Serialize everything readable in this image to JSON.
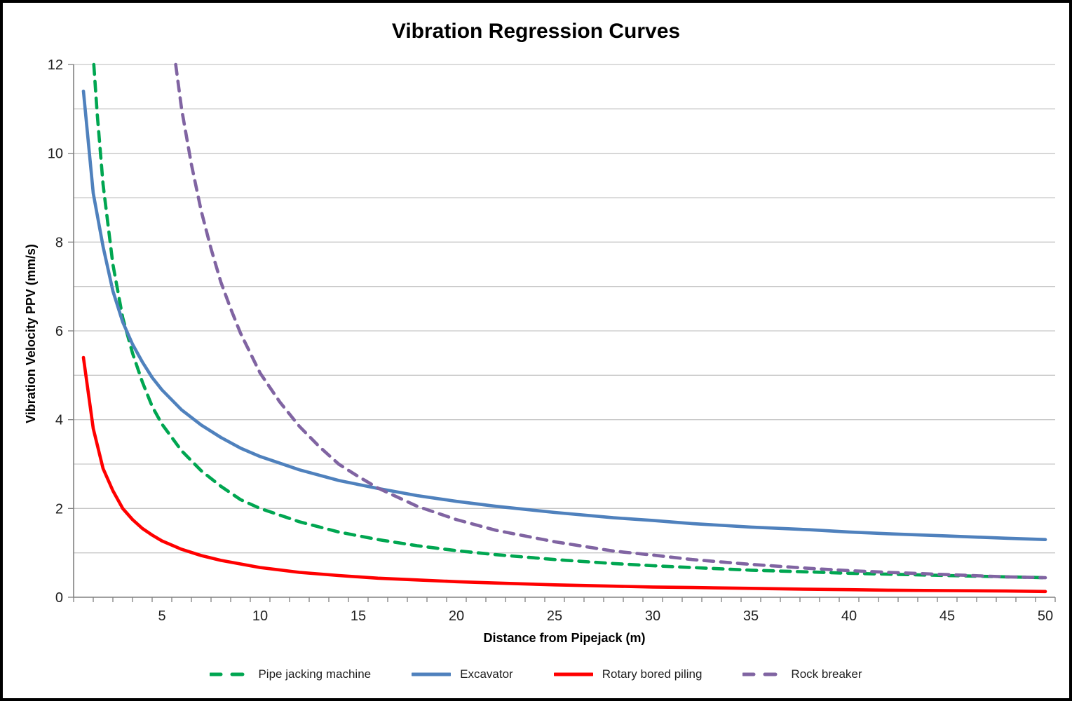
{
  "page": {
    "background": "#FFFFFF",
    "border_color": "#000000"
  },
  "chart_data": {
    "type": "line",
    "title": "Vibration Regression Curves",
    "xlabel": "Distance from Pipejack (m)",
    "ylabel": "Vibration Velocity PPV (mm/s)",
    "xlim": [
      0.5,
      50.5
    ],
    "ylim": [
      0,
      12
    ],
    "x_ticks": [
      5,
      10,
      15,
      20,
      25,
      30,
      35,
      40,
      45,
      50
    ],
    "y_ticks": [
      0,
      2,
      4,
      6,
      8,
      10,
      12
    ],
    "y_gridline_step": 1,
    "grid": "horizontal gridlines every 1 unit",
    "grid_color": "#C6C6C6",
    "axis_color": "#808080",
    "tick_label_color": "#1f1f1f",
    "legend_position": "bottom",
    "series": [
      {
        "name": "Pipe jacking machine",
        "color": "#00A651",
        "style": "dashed",
        "points": [
          [
            1.53,
            12
          ],
          [
            1.7,
            10.9
          ],
          [
            2,
            9.3
          ],
          [
            2.5,
            7.5
          ],
          [
            3,
            6.3
          ],
          [
            3.5,
            5.5
          ],
          [
            4,
            4.85
          ],
          [
            4.5,
            4.3
          ],
          [
            5,
            3.9
          ],
          [
            6,
            3.3
          ],
          [
            7,
            2.85
          ],
          [
            8,
            2.5
          ],
          [
            9,
            2.2
          ],
          [
            10,
            2.0
          ],
          [
            12,
            1.7
          ],
          [
            14,
            1.47
          ],
          [
            16,
            1.3
          ],
          [
            18,
            1.16
          ],
          [
            20,
            1.05
          ],
          [
            22,
            0.96
          ],
          [
            25,
            0.85
          ],
          [
            28,
            0.76
          ],
          [
            30,
            0.71
          ],
          [
            32,
            0.67
          ],
          [
            35,
            0.61
          ],
          [
            38,
            0.57
          ],
          [
            40,
            0.54
          ],
          [
            42,
            0.52
          ],
          [
            45,
            0.49
          ],
          [
            48,
            0.46
          ],
          [
            50,
            0.44
          ]
        ]
      },
      {
        "name": "Excavator",
        "color": "#4F81BD",
        "style": "solid",
        "points": [
          [
            1,
            11.4
          ],
          [
            1.5,
            9.1
          ],
          [
            2,
            7.9
          ],
          [
            2.5,
            6.9
          ],
          [
            3,
            6.2
          ],
          [
            3.5,
            5.7
          ],
          [
            4,
            5.3
          ],
          [
            4.5,
            4.95
          ],
          [
            5,
            4.67
          ],
          [
            6,
            4.22
          ],
          [
            7,
            3.88
          ],
          [
            8,
            3.6
          ],
          [
            9,
            3.36
          ],
          [
            10,
            3.17
          ],
          [
            12,
            2.87
          ],
          [
            14,
            2.63
          ],
          [
            16,
            2.45
          ],
          [
            18,
            2.29
          ],
          [
            20,
            2.16
          ],
          [
            22,
            2.05
          ],
          [
            25,
            1.91
          ],
          [
            28,
            1.79
          ],
          [
            30,
            1.73
          ],
          [
            32,
            1.66
          ],
          [
            35,
            1.58
          ],
          [
            38,
            1.52
          ],
          [
            40,
            1.47
          ],
          [
            42,
            1.43
          ],
          [
            45,
            1.38
          ],
          [
            48,
            1.33
          ],
          [
            50,
            1.3
          ]
        ]
      },
      {
        "name": "Rotary bored piling",
        "color": "#FF0000",
        "style": "solid",
        "points": [
          [
            1,
            5.4
          ],
          [
            1.5,
            3.8
          ],
          [
            2,
            2.9
          ],
          [
            2.5,
            2.4
          ],
          [
            3,
            2.0
          ],
          [
            3.5,
            1.75
          ],
          [
            4,
            1.55
          ],
          [
            4.5,
            1.4
          ],
          [
            5,
            1.27
          ],
          [
            6,
            1.08
          ],
          [
            7,
            0.94
          ],
          [
            8,
            0.83
          ],
          [
            9,
            0.75
          ],
          [
            10,
            0.67
          ],
          [
            12,
            0.56
          ],
          [
            14,
            0.49
          ],
          [
            16,
            0.43
          ],
          [
            18,
            0.39
          ],
          [
            20,
            0.35
          ],
          [
            22,
            0.32
          ],
          [
            25,
            0.28
          ],
          [
            28,
            0.25
          ],
          [
            30,
            0.23
          ],
          [
            32,
            0.22
          ],
          [
            35,
            0.2
          ],
          [
            38,
            0.18
          ],
          [
            40,
            0.17
          ],
          [
            42,
            0.16
          ],
          [
            45,
            0.15
          ],
          [
            48,
            0.14
          ],
          [
            50,
            0.13
          ]
        ]
      },
      {
        "name": "Rock breaker",
        "color": "#8064A2",
        "style": "dashed",
        "points": [
          [
            5.7,
            12
          ],
          [
            6,
            11.0
          ],
          [
            6.5,
            9.75
          ],
          [
            7,
            8.7
          ],
          [
            7.5,
            7.85
          ],
          [
            8,
            7.1
          ],
          [
            8.5,
            6.5
          ],
          [
            9,
            5.95
          ],
          [
            9.5,
            5.5
          ],
          [
            10,
            5.05
          ],
          [
            11,
            4.4
          ],
          [
            12,
            3.85
          ],
          [
            13,
            3.4
          ],
          [
            14,
            3.0
          ],
          [
            15,
            2.72
          ],
          [
            16,
            2.46
          ],
          [
            18,
            2.05
          ],
          [
            20,
            1.75
          ],
          [
            22,
            1.51
          ],
          [
            25,
            1.25
          ],
          [
            28,
            1.04
          ],
          [
            30,
            0.95
          ],
          [
            32,
            0.85
          ],
          [
            35,
            0.74
          ],
          [
            38,
            0.65
          ],
          [
            40,
            0.6
          ],
          [
            42,
            0.56
          ],
          [
            45,
            0.51
          ],
          [
            48,
            0.46
          ],
          [
            50,
            0.44
          ]
        ]
      }
    ]
  }
}
